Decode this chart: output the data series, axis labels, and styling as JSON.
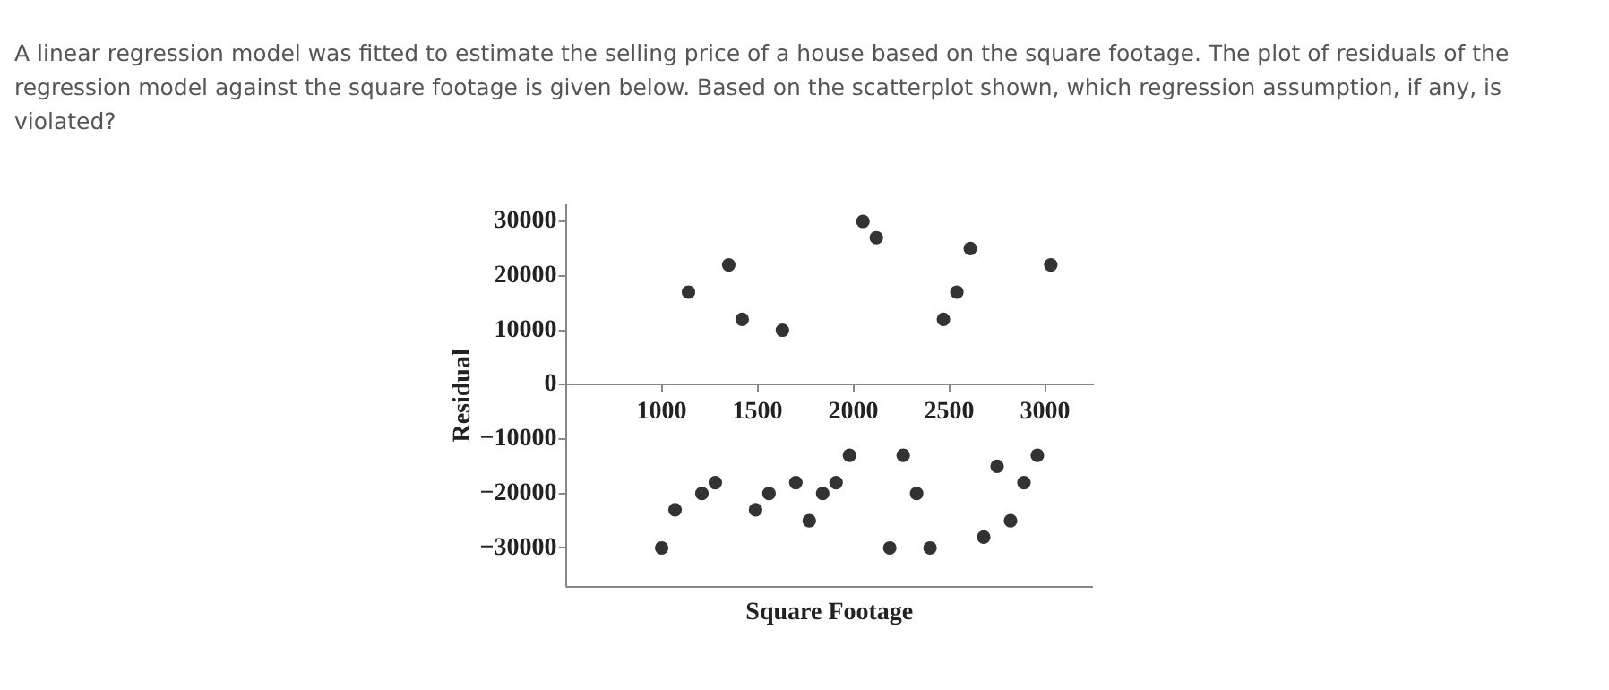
{
  "chart_data": {
    "type": "scatter",
    "title": "A linear regression model was fitted to estimate the selling price of a house based on the square footage. The plot of residuals of the regression model against the square footage is given below. Based on the scatterplot shown, which regression assumption, if any, is violated?",
    "xlabel": "Square Footage",
    "ylabel": "Residual",
    "marker": "circle",
    "grid": false,
    "legend": false,
    "xlim": [
      500,
      3250
    ],
    "xticks": [
      1000,
      1500,
      2000,
      2500,
      3000
    ],
    "ylim": [
      -37000,
      33000
    ],
    "yticks": [
      -30000,
      -20000,
      -10000,
      0,
      10000,
      20000,
      30000
    ],
    "series": [
      {
        "color": "#333333",
        "x": [
          1140,
          1350,
          1420,
          1630,
          2050,
          2120,
          2470,
          2540,
          2610,
          3030,
          1000,
          1070,
          1210,
          1280,
          1490,
          1560,
          1700,
          1770,
          1840,
          1910,
          1980,
          2190,
          2260,
          2330,
          2400,
          2680,
          2750,
          2820,
          2890,
          2960
        ],
        "values": [
          17000,
          22000,
          12000,
          10000,
          30000,
          27000,
          12000,
          17000,
          25000,
          22000,
          -30000,
          -23000,
          -20000,
          -18000,
          -23000,
          -20000,
          -18000,
          -25000,
          -20000,
          -18000,
          -13000,
          -30000,
          -13000,
          -20000,
          -30000,
          -28000,
          -15000,
          -25000,
          -18000,
          -13000
        ]
      }
    ]
  }
}
